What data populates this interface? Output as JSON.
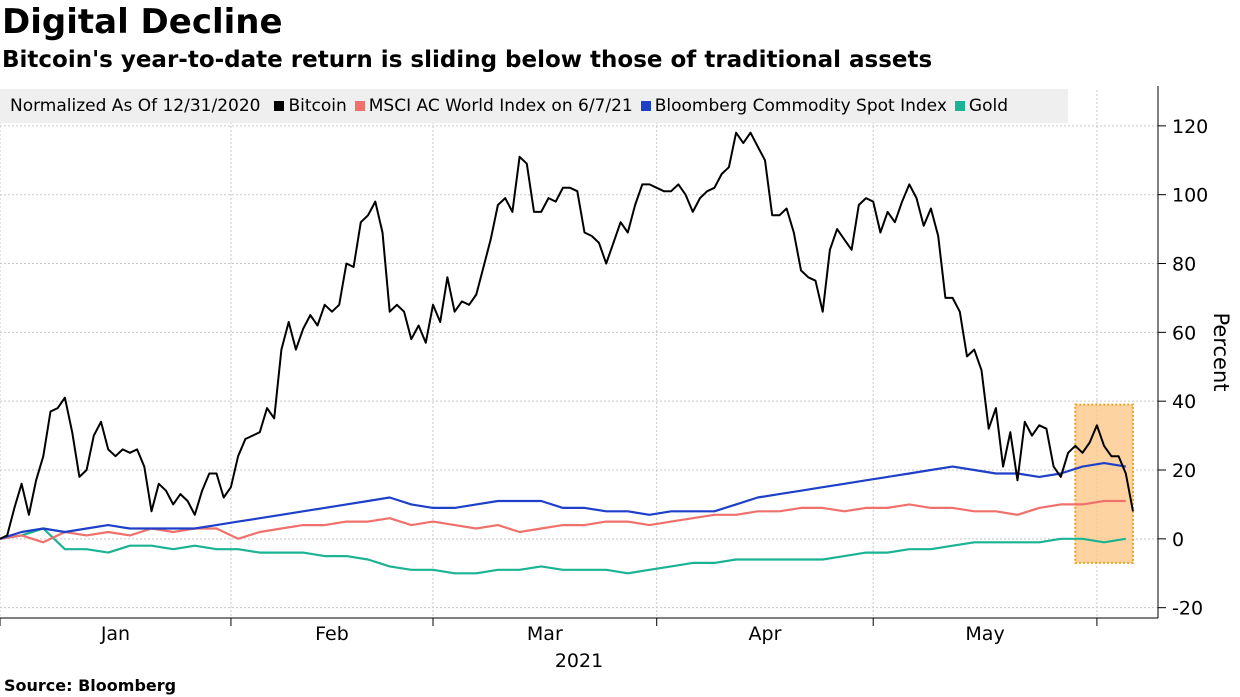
{
  "header": {
    "title": "Digital Decline",
    "subtitle": "Bitcoin's year-to-date return is sliding below those of traditional assets"
  },
  "legend": {
    "normalized_label": "Normalized As Of 12/31/2020",
    "items": [
      {
        "name": "Bitcoin",
        "color": "#000000"
      },
      {
        "name": "MSCI AC World Index on 6/7/21",
        "color": "#f0716c"
      },
      {
        "name": "Bloomberg Commodity Spot Index",
        "color": "#1e40c8"
      },
      {
        "name": "Gold",
        "color": "#1ab394"
      }
    ]
  },
  "footer": {
    "source": "Source: Bloomberg"
  },
  "chart_data": {
    "type": "line",
    "title": "Digital Decline",
    "subtitle": "Bitcoin's year-to-date return is sliding below those of traditional assets",
    "ylabel": "Percent",
    "xlabel": "2021",
    "ylim": [
      -23,
      131
    ],
    "yticks": [
      -20,
      0,
      20,
      40,
      60,
      80,
      100,
      120
    ],
    "x_axis": {
      "start": "2020-12-31",
      "end": "2021-06-07",
      "month_labels": [
        "Jan",
        "Feb",
        "Mar",
        "Apr",
        "May"
      ],
      "year_label": "2021"
    },
    "highlight": {
      "x_start": 149,
      "x_end": 157,
      "y_min": -7,
      "y_max": 39,
      "color": "#fcc98a",
      "border": "#f0a020"
    },
    "series": [
      {
        "name": "Bitcoin",
        "color": "#000000",
        "x": [
          0,
          1,
          2,
          3,
          4,
          5,
          6,
          7,
          8,
          9,
          10,
          11,
          12,
          13,
          14,
          15,
          16,
          17,
          18,
          19,
          20,
          21,
          22,
          23,
          24,
          25,
          26,
          27,
          28,
          29,
          30,
          31,
          32,
          33,
          34,
          35,
          36,
          37,
          38,
          39,
          40,
          41,
          42,
          43,
          44,
          45,
          46,
          47,
          48,
          49,
          50,
          51,
          52,
          53,
          54,
          55,
          56,
          57,
          58,
          59,
          60,
          61,
          62,
          63,
          64,
          65,
          66,
          67,
          68,
          69,
          70,
          71,
          72,
          73,
          74,
          75,
          76,
          77,
          78,
          79,
          80,
          81,
          82,
          83,
          84,
          85,
          86,
          87,
          88,
          89,
          90,
          91,
          92,
          93,
          94,
          95,
          96,
          97,
          98,
          99,
          100,
          101,
          102,
          103,
          104,
          105,
          106,
          107,
          108,
          109,
          110,
          111,
          112,
          113,
          114,
          115,
          116,
          117,
          118,
          119,
          120,
          121,
          122,
          123,
          124,
          125,
          126,
          127,
          128,
          129,
          130,
          131,
          132,
          133,
          134,
          135,
          136,
          137,
          138,
          139,
          140,
          141,
          142,
          143,
          144,
          145,
          146,
          147,
          148,
          149,
          150,
          151,
          152,
          153,
          154,
          155,
          156,
          157
        ],
        "values": [
          0,
          1,
          9,
          16,
          7,
          17,
          24,
          37,
          38,
          41,
          31,
          18,
          20,
          30,
          34,
          26,
          24,
          26,
          25,
          26,
          21,
          8,
          16,
          14,
          10,
          13,
          11,
          7,
          14,
          19,
          19,
          12,
          15,
          24,
          29,
          30,
          31,
          38,
          35,
          55,
          63,
          55,
          61,
          65,
          62,
          68,
          66,
          68,
          80,
          79,
          92,
          94,
          98,
          89,
          66,
          68,
          66,
          58,
          62,
          57,
          68,
          63,
          76,
          66,
          69,
          68,
          71,
          79,
          87,
          97,
          99,
          95,
          111,
          109,
          95,
          95,
          99,
          98,
          102,
          102,
          101,
          89,
          88,
          86,
          80,
          86,
          92,
          89,
          97,
          103,
          103,
          102,
          101,
          101,
          103,
          100,
          95,
          99,
          101,
          102,
          106,
          108,
          118,
          115,
          118,
          114,
          110,
          94,
          94,
          96,
          89,
          78,
          76,
          75,
          66,
          84,
          90,
          87,
          84,
          97,
          99,
          98,
          89,
          95,
          92,
          98,
          103,
          99,
          91,
          96,
          88,
          70,
          70,
          66,
          53,
          55,
          49,
          32,
          38,
          21,
          31,
          17,
          34,
          30,
          33,
          32,
          21,
          18,
          25,
          27,
          25,
          28,
          33,
          27,
          24,
          24,
          19,
          8
        ]
      },
      {
        "name": "MSCI AC World Index on 6/7/21",
        "color": "#f0716c",
        "x": [
          0,
          3,
          6,
          9,
          12,
          15,
          18,
          21,
          24,
          27,
          30,
          33,
          36,
          39,
          42,
          45,
          48,
          51,
          54,
          57,
          60,
          63,
          66,
          69,
          72,
          75,
          78,
          81,
          84,
          87,
          90,
          93,
          96,
          99,
          102,
          105,
          108,
          111,
          114,
          117,
          120,
          123,
          126,
          129,
          132,
          135,
          138,
          141,
          144,
          147,
          150,
          153,
          156
        ],
        "values": [
          0,
          1,
          -1,
          2,
          1,
          2,
          1,
          3,
          2,
          3,
          3,
          0,
          2,
          3,
          4,
          4,
          5,
          5,
          6,
          4,
          5,
          4,
          3,
          4,
          2,
          3,
          4,
          4,
          5,
          5,
          4,
          5,
          6,
          7,
          7,
          8,
          8,
          9,
          9,
          8,
          9,
          9,
          10,
          9,
          9,
          8,
          8,
          7,
          9,
          10,
          10,
          11,
          11
        ]
      },
      {
        "name": "Bloomberg Commodity Spot Index",
        "color": "#1e40c8",
        "x": [
          0,
          3,
          6,
          9,
          12,
          15,
          18,
          21,
          24,
          27,
          30,
          33,
          36,
          39,
          42,
          45,
          48,
          51,
          54,
          57,
          60,
          63,
          66,
          69,
          72,
          75,
          78,
          81,
          84,
          87,
          90,
          93,
          96,
          99,
          102,
          105,
          108,
          111,
          114,
          117,
          120,
          123,
          126,
          129,
          132,
          135,
          138,
          141,
          144,
          147,
          150,
          153,
          156
        ],
        "values": [
          0,
          2,
          3,
          2,
          3,
          4,
          3,
          3,
          3,
          3,
          4,
          5,
          6,
          7,
          8,
          9,
          10,
          11,
          12,
          10,
          9,
          9,
          10,
          11,
          11,
          11,
          9,
          9,
          8,
          8,
          7,
          8,
          8,
          8,
          10,
          12,
          13,
          14,
          15,
          16,
          17,
          18,
          19,
          20,
          21,
          20,
          19,
          19,
          18,
          19,
          21,
          22,
          21
        ]
      },
      {
        "name": "Gold",
        "color": "#1ab394",
        "x": [
          0,
          3,
          6,
          9,
          12,
          15,
          18,
          21,
          24,
          27,
          30,
          33,
          36,
          39,
          42,
          45,
          48,
          51,
          54,
          57,
          60,
          63,
          66,
          69,
          72,
          75,
          78,
          81,
          84,
          87,
          90,
          93,
          96,
          99,
          102,
          105,
          108,
          111,
          114,
          117,
          120,
          123,
          126,
          129,
          132,
          135,
          138,
          141,
          144,
          147,
          150,
          153,
          156
        ],
        "values": [
          0,
          1,
          3,
          -3,
          -3,
          -4,
          -2,
          -2,
          -3,
          -2,
          -3,
          -3,
          -4,
          -4,
          -4,
          -5,
          -5,
          -6,
          -8,
          -9,
          -9,
          -10,
          -10,
          -9,
          -9,
          -8,
          -9,
          -9,
          -9,
          -10,
          -9,
          -8,
          -7,
          -7,
          -6,
          -6,
          -6,
          -6,
          -6,
          -5,
          -4,
          -4,
          -3,
          -3,
          -2,
          -1,
          -1,
          -1,
          -1,
          0,
          0,
          -1,
          0
        ]
      }
    ]
  }
}
